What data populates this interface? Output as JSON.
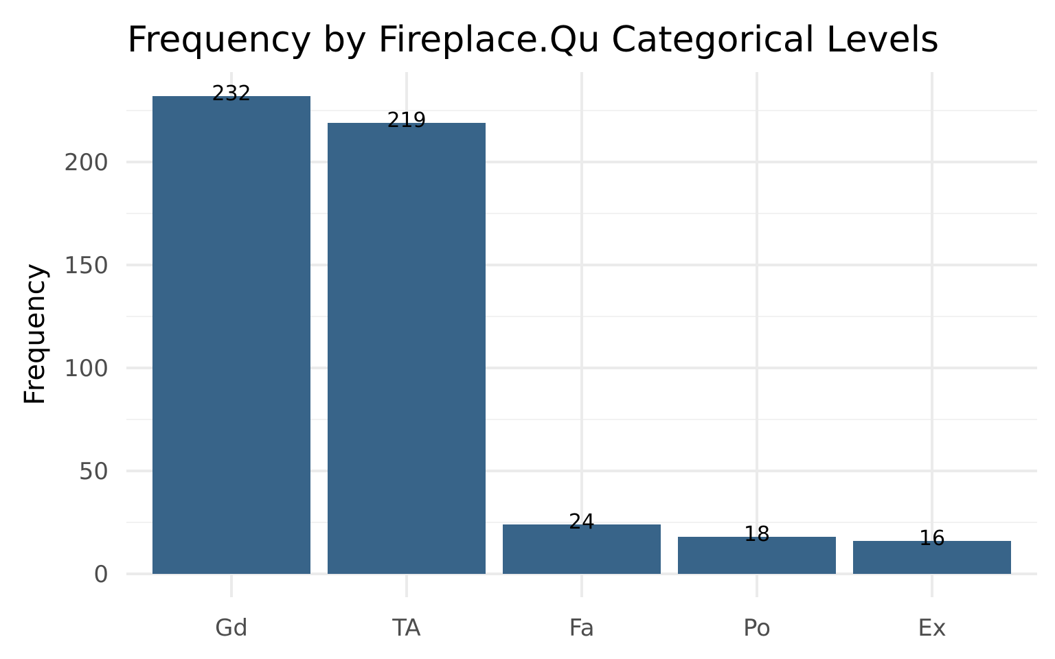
{
  "chart_data": {
    "type": "bar",
    "title": "Frequency by Fireplace.Qu Categorical Levels",
    "xlabel": "",
    "ylabel": "Frequency",
    "categories": [
      "Gd",
      "TA",
      "Fa",
      "Po",
      "Ex"
    ],
    "values": [
      232,
      219,
      24,
      18,
      16
    ],
    "data_labels": [
      "232",
      "219",
      "24",
      "18",
      "16"
    ],
    "ylim": [
      0,
      240
    ],
    "yticks": [
      0,
      50,
      100,
      150,
      200
    ],
    "ytick_labels": [
      "0",
      "50",
      "100",
      "150",
      "200"
    ],
    "grid": true,
    "legend": "none",
    "colors": {
      "bar": "#386489",
      "grid": "#ebebeb",
      "tick_text": "#4d4d4d"
    }
  }
}
